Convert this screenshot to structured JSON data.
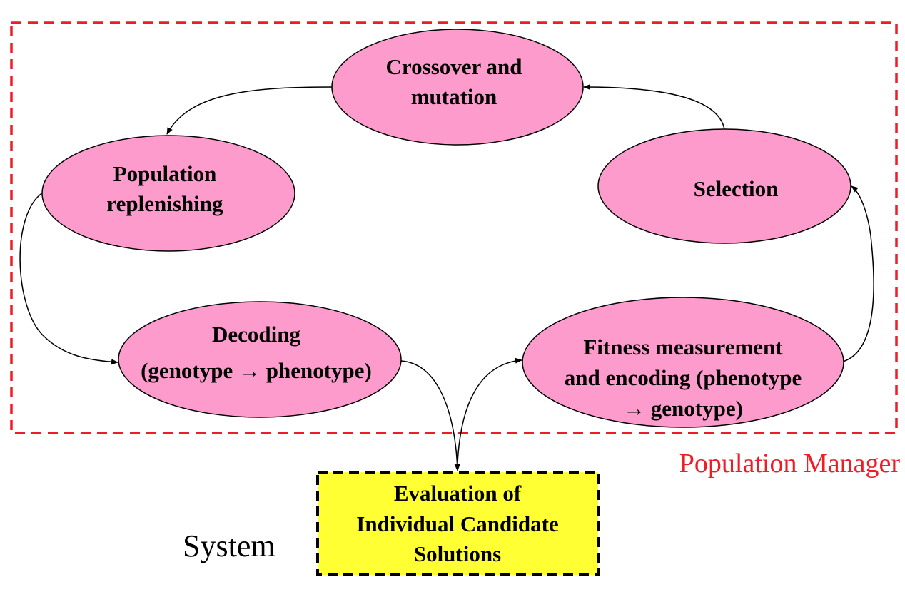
{
  "colors": {
    "node_fill": "#fd9bcc",
    "node_stroke": "#000000",
    "manager_border": "#ee1c25",
    "manager_label": "#ee1c25",
    "evaluation_fill": "#ffff33",
    "evaluation_border": "#000000",
    "edge": "#000000"
  },
  "population_manager": {
    "label": "Population Manager"
  },
  "system": {
    "label": "System"
  },
  "nodes": {
    "crossover": {
      "line1": "Crossover and",
      "line2": "mutation"
    },
    "replenishing": {
      "line1": "Population",
      "line2": "replenishing"
    },
    "selection": {
      "line1": "Selection"
    },
    "decoding": {
      "line1": "Decoding",
      "line2": "(genotype → phenotype)"
    },
    "fitness": {
      "line1": "Fitness measurement",
      "line2": "and encoding (phenotype",
      "line3": "→ genotype)"
    }
  },
  "evaluation": {
    "line1": "Evaluation of",
    "line2": "Individual Candidate",
    "line3": "Solutions"
  },
  "edges": [
    {
      "from": "crossover",
      "to": "replenishing"
    },
    {
      "from": "replenishing",
      "to": "decoding"
    },
    {
      "from": "decoding",
      "to": "evaluation"
    },
    {
      "from": "evaluation",
      "to": "fitness"
    },
    {
      "from": "fitness",
      "to": "selection"
    },
    {
      "from": "selection",
      "to": "crossover"
    }
  ]
}
